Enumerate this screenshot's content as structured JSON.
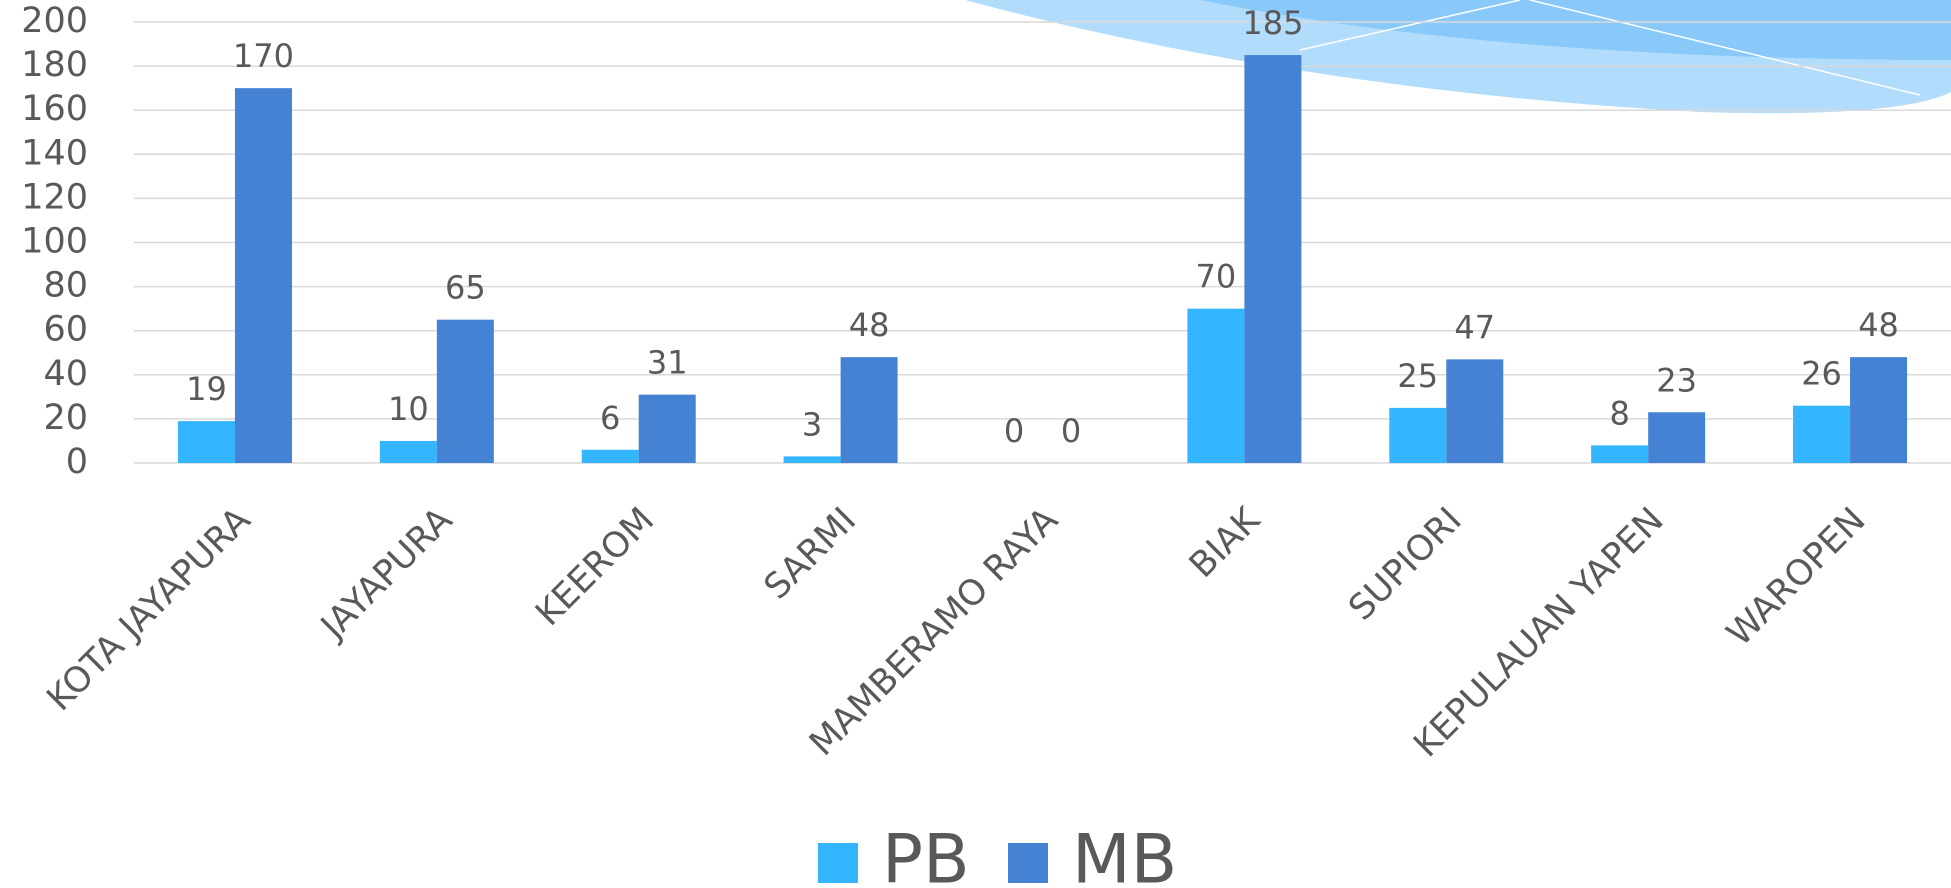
{
  "chart_data": {
    "type": "bar",
    "categories": [
      "KOTA JAYAPURA",
      "JAYAPURA",
      "KEEROM",
      "SARMI",
      "MAMBERAMO RAYA",
      "BIAK",
      "SUPIORI",
      "KEPULAUAN YAPEN",
      "WAROPEN"
    ],
    "series": [
      {
        "name": "PB",
        "color": "#33b5ff",
        "values": [
          19,
          10,
          6,
          3,
          0,
          70,
          25,
          8,
          26
        ]
      },
      {
        "name": "MB",
        "color": "#4582d4",
        "values": [
          170,
          65,
          31,
          48,
          0,
          185,
          47,
          23,
          48
        ]
      }
    ],
    "ylim": [
      0,
      200
    ],
    "yticks": [
      0,
      20,
      40,
      60,
      80,
      100,
      120,
      140,
      160,
      180,
      200
    ],
    "grid": true,
    "legend": "bottom"
  }
}
